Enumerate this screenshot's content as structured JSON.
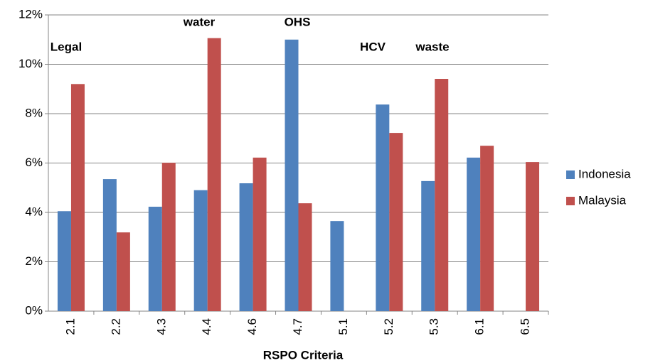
{
  "chart_data": {
    "type": "bar",
    "categories": [
      "2.1",
      "2.2",
      "4.3",
      "4.4",
      "4.6",
      "4.7",
      "5.1",
      "5.2",
      "5.3",
      "6.1",
      "6.5"
    ],
    "series": [
      {
        "name": "Indonesia",
        "color": "#4f81bd",
        "values": [
          4.05,
          5.35,
          4.23,
          4.9,
          5.18,
          11.0,
          3.65,
          8.37,
          5.27,
          6.22,
          null
        ]
      },
      {
        "name": "Malaysia",
        "color": "#c0504d",
        "values": [
          9.2,
          3.19,
          6.01,
          11.06,
          6.22,
          4.37,
          null,
          7.22,
          9.41,
          6.7,
          6.04
        ]
      }
    ],
    "ylim": [
      0,
      12
    ],
    "yticks": [
      {
        "value": 0,
        "label": "0%"
      },
      {
        "value": 2,
        "label": "2%"
      },
      {
        "value": 4,
        "label": "4%"
      },
      {
        "value": 6,
        "label": "6%"
      },
      {
        "value": 8,
        "label": "8%"
      },
      {
        "value": 10,
        "label": "10%"
      },
      {
        "value": 12,
        "label": "12%"
      }
    ],
    "grid": true,
    "x_label": "RSPO Criteria",
    "annotations": [
      "Legal",
      "water",
      "OHS",
      "HCV",
      "waste"
    ],
    "legend": "right"
  }
}
